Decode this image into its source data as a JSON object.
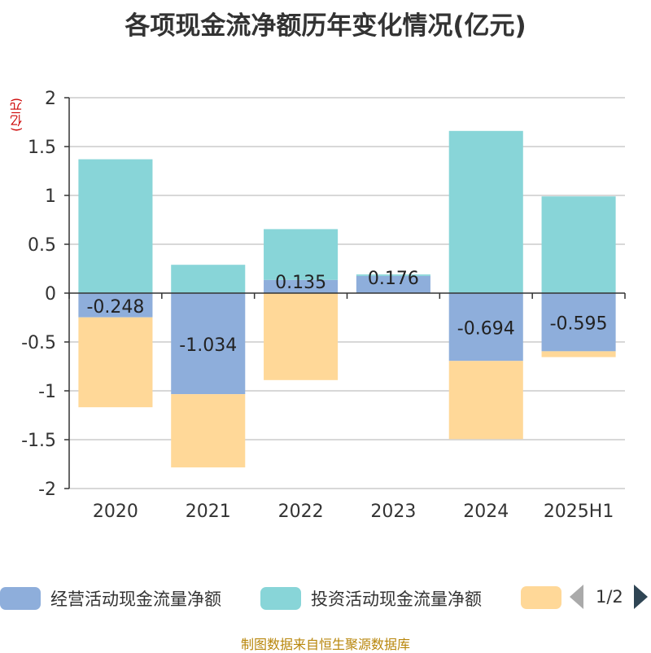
{
  "title": "各项现金流净额历年变化情况(亿元)",
  "unit_label": "(亿元)",
  "legend": {
    "items": [
      {
        "label": "经营活动现金流量净额",
        "color": "#8eaedb"
      },
      {
        "label": "投资活动现金流量净额",
        "color": "#88d5d8"
      },
      {
        "label": "",
        "color": "#ffd898"
      }
    ],
    "page_indicator": "1/2"
  },
  "footer": "制图数据来自恒生聚源数据库",
  "chart_data": {
    "type": "bar",
    "stacked": true,
    "categories": [
      "2020",
      "2021",
      "2022",
      "2023",
      "2024",
      "2025H1"
    ],
    "series": [
      {
        "name": "经营活动现金流量净额",
        "color": "#8eaedb",
        "values": [
          -0.248,
          -1.034,
          0.135,
          0.176,
          -0.694,
          -0.595
        ],
        "labels": [
          "-0.248",
          "-1.034",
          "0.135",
          "0.176",
          "-0.694",
          "-0.595"
        ]
      },
      {
        "name": "投资活动现金流量净额",
        "color": "#88d5d8",
        "values": [
          1.37,
          0.29,
          0.52,
          0.015,
          1.66,
          0.99
        ]
      },
      {
        "color": "#ffd898",
        "values": [
          -0.92,
          -0.75,
          -0.89,
          0,
          -0.8,
          -0.06
        ]
      }
    ],
    "ylim": [
      -2,
      2
    ],
    "yticks": [
      2,
      1.5,
      1,
      0.5,
      0,
      -0.5,
      -1,
      -1.5,
      -2
    ],
    "ytick_labels": [
      "2",
      "1.5",
      "1",
      "0.5",
      "0",
      "-0.5",
      "-1",
      "-1.5",
      "-2"
    ],
    "grid": true
  }
}
